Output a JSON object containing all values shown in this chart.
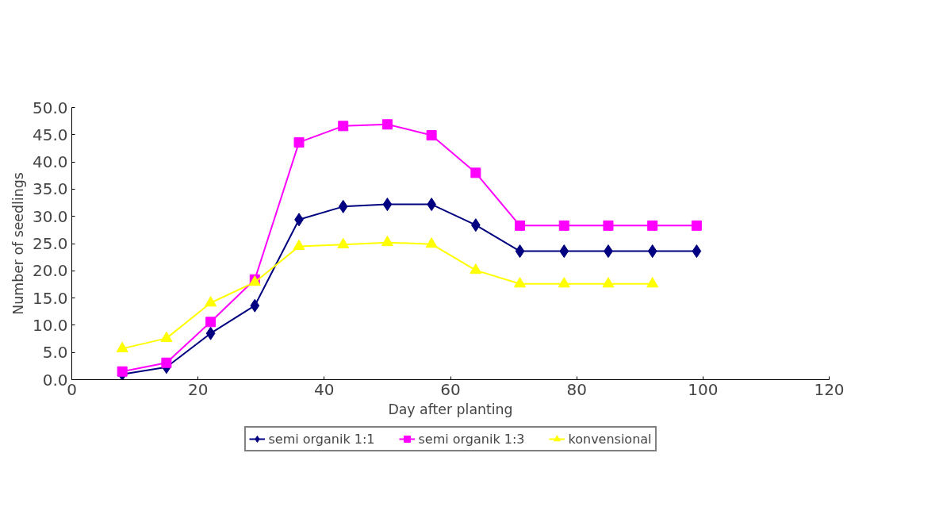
{
  "chart_data": {
    "type": "line",
    "xlabel": "Day after planting",
    "ylabel": "Number of seedlings",
    "x": [
      8,
      15,
      22,
      29,
      36,
      43,
      50,
      57,
      64,
      71,
      78,
      85,
      92,
      99
    ],
    "series": [
      {
        "name": "semi organik 1:1",
        "color": "#000080",
        "marker": "diamond",
        "values": [
          1.0,
          2.3,
          8.5,
          13.6,
          29.4,
          31.8,
          32.2,
          32.2,
          28.4,
          23.6,
          23.6,
          23.6,
          23.6,
          23.6
        ]
      },
      {
        "name": "semi organik 1:3",
        "color": "#ff00ff",
        "marker": "square",
        "values": [
          1.5,
          3.1,
          10.6,
          18.4,
          43.6,
          46.6,
          46.9,
          44.9,
          38.0,
          28.3,
          28.3,
          28.3,
          28.3,
          28.3
        ]
      },
      {
        "name": "konvensional",
        "color": "#ffff00",
        "marker": "triangle",
        "values": [
          5.7,
          7.6,
          14.1,
          17.9,
          24.5,
          24.8,
          25.2,
          24.9,
          20.1,
          17.6,
          17.6,
          17.6,
          17.6,
          null
        ]
      }
    ],
    "xlim": [
      0,
      120
    ],
    "xticks": [
      0,
      20,
      40,
      60,
      80,
      100,
      120
    ],
    "ylim": [
      0,
      50
    ],
    "yticks": [
      {
        "value": 0,
        "label": "0.0"
      },
      {
        "value": 5,
        "label": "5.0"
      },
      {
        "value": 10,
        "label": "10.0"
      },
      {
        "value": 15,
        "label": "15.0"
      },
      {
        "value": 20,
        "label": "20.0"
      },
      {
        "value": 25,
        "label": "25.0"
      },
      {
        "value": 30,
        "label": "30.0"
      },
      {
        "value": 35,
        "label": "35.0"
      },
      {
        "value": 40,
        "label": "40.0"
      },
      {
        "value": 45,
        "label": "45.0"
      },
      {
        "value": 50,
        "label": "50.0"
      }
    ],
    "grid": false,
    "legend": "bottom",
    "line_style": "solid"
  }
}
